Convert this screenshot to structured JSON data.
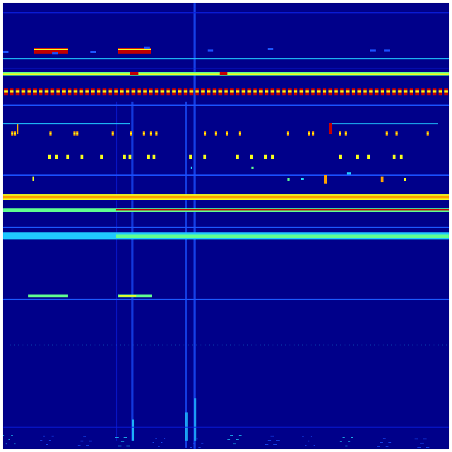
{
  "image": {
    "kind": "spectrogram",
    "colormap": "jet",
    "colors": {
      "background": "#00008a",
      "faint": "#0a1ee0",
      "blue": "#1a50ff",
      "cyan": "#20c8ff",
      "green": "#60ff90",
      "yellow": "#f0ff20",
      "orange": "#ffa000",
      "red": "#c00000"
    }
  }
}
